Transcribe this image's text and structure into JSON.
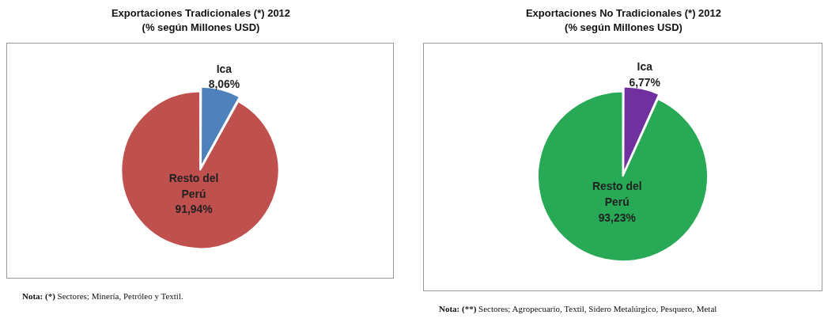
{
  "chart_data": [
    {
      "type": "pie",
      "title": "Exportaciones Tradicionales (*) 2012",
      "subtitle": "(% según Millones USD)",
      "categories": [
        "Ica",
        "Resto del Perú"
      ],
      "values": [
        8.06,
        91.94
      ],
      "colors": [
        "#4f81bd",
        "#c0504d"
      ],
      "value_labels": [
        "8,06%",
        "91,94%"
      ],
      "legend": false,
      "annotations": [
        "Nota: (*) Sectores; Minería, Petróleo y Textil."
      ]
    },
    {
      "type": "pie",
      "title": "Exportaciones No Tradicionales (*) 2012",
      "subtitle": "(% según Millones USD)",
      "categories": [
        "Ica",
        "Resto del Perú"
      ],
      "values": [
        6.77,
        93.23
      ],
      "colors": [
        "#7030a0",
        "#27a955"
      ],
      "value_labels": [
        "6,77%",
        "93,23%"
      ],
      "legend": false,
      "annotations": [
        "Nota: (**) Sectores; Agropecuario, Textil, Sidero Metalúrgico, Pesquero, Metal"
      ]
    }
  ]
}
